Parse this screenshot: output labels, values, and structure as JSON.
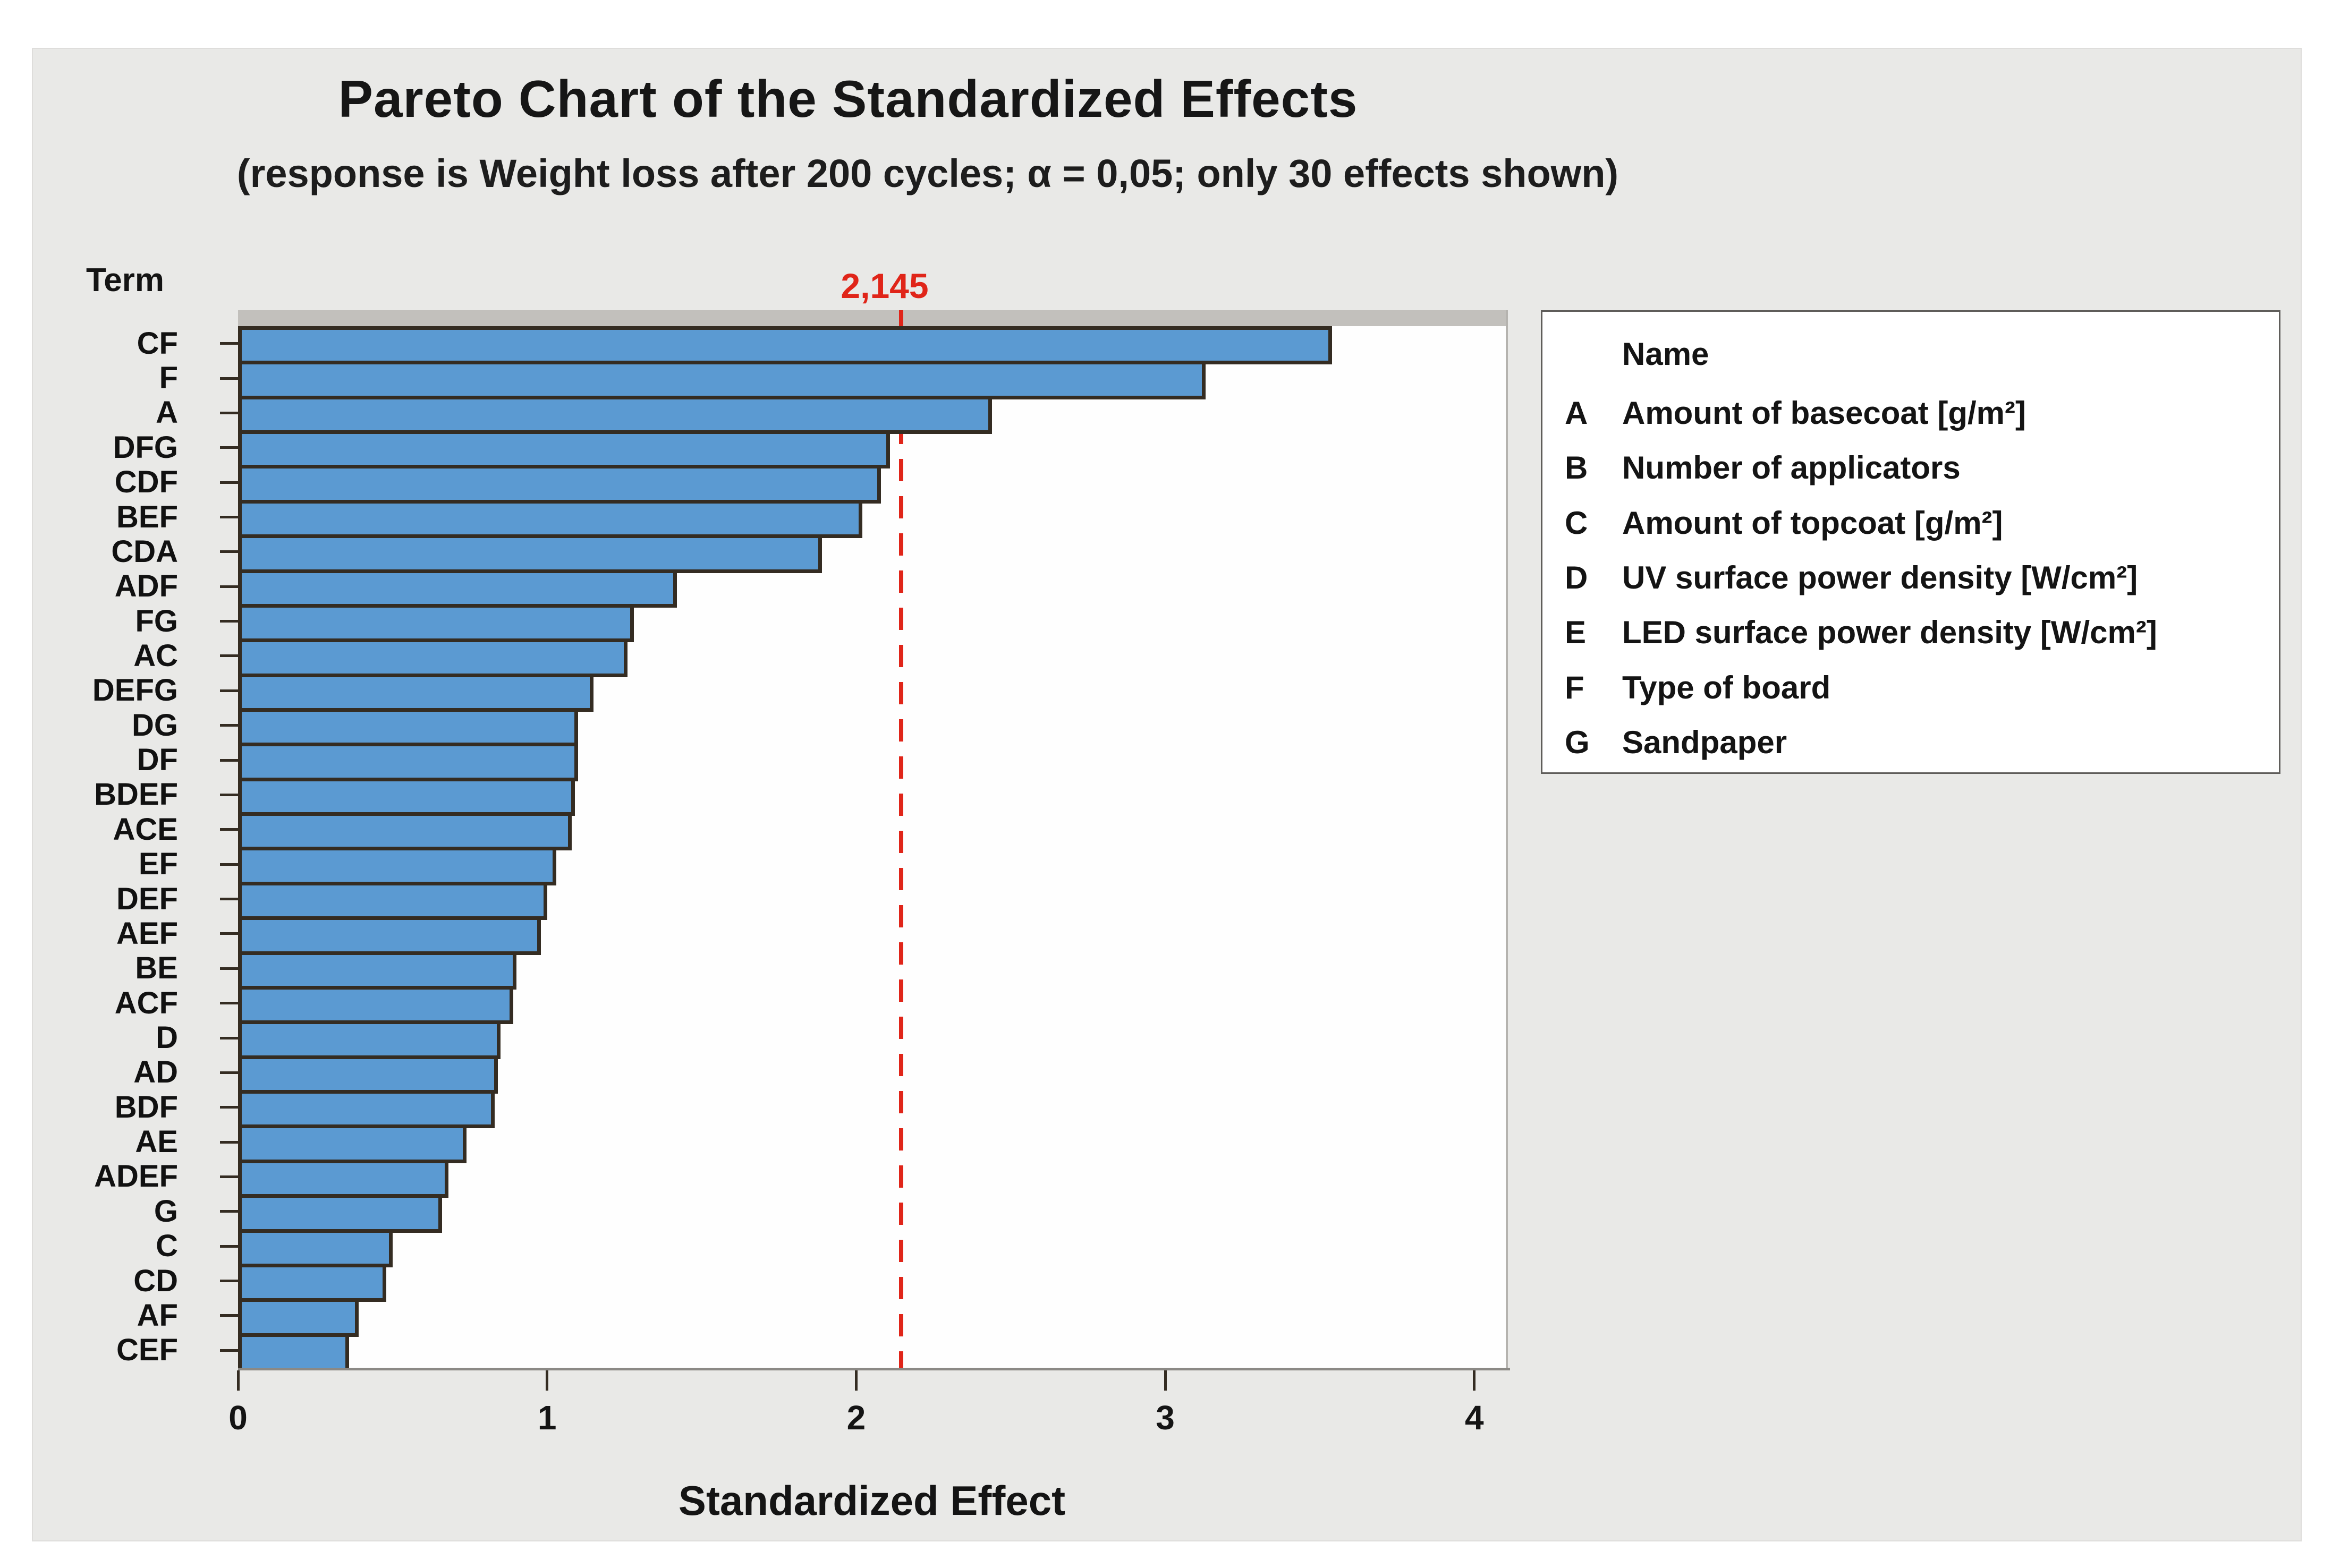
{
  "colors": {
    "panel_background": "#E9E9E7",
    "plot_background": "#FEFEFE",
    "bar_blue": "#5B9AD2",
    "bar_border": "#342C22",
    "accent_red": "#E02519",
    "text": "#141414"
  },
  "chart_data": {
    "type": "bar",
    "orientation": "horizontal-pareto",
    "title": "Pareto Chart of the Standardized Effects",
    "subtitle": "(response is Weight loss after 200 cycles; α = 0,05; only 30 effects shown)",
    "xlabel": "Standardized Effect",
    "ylabel": "Term",
    "xlim": [
      0,
      4
    ],
    "x_ticks": [
      "0",
      "1",
      "2",
      "3",
      "4"
    ],
    "grid": "off",
    "legend_position": "right",
    "reference_line": {
      "value": 2.145,
      "label": "2,145",
      "style": "dashed",
      "color": "#E02519"
    },
    "categories": [
      "CF",
      "F",
      "A",
      "DFG",
      "CDF",
      "BEF",
      "CDA",
      "ADF",
      "FG",
      "AC",
      "DEFG",
      "DG",
      "DF",
      "BDEF",
      "ACE",
      "EF",
      "DEF",
      "AEF",
      "BE",
      "ACF",
      "D",
      "AD",
      "BDF",
      "AE",
      "ADEF",
      "G",
      "C",
      "CD",
      "AF",
      "CEF"
    ],
    "values": [
      3.54,
      3.13,
      2.44,
      2.11,
      2.08,
      2.02,
      1.89,
      1.42,
      1.28,
      1.26,
      1.15,
      1.1,
      1.1,
      1.09,
      1.08,
      1.03,
      1.0,
      0.98,
      0.9,
      0.89,
      0.85,
      0.84,
      0.83,
      0.74,
      0.68,
      0.66,
      0.5,
      0.48,
      0.39,
      0.36
    ],
    "legend": {
      "header": "Name",
      "entries": [
        {
          "key": "A",
          "name": "Amount of basecoat [g/m²]"
        },
        {
          "key": "B",
          "name": "Number of applicators"
        },
        {
          "key": "C",
          "name": "Amount of topcoat [g/m²]"
        },
        {
          "key": "D",
          "name": "UV surface power density [W/cm²]"
        },
        {
          "key": "E",
          "name": "LED surface power density [W/cm²]"
        },
        {
          "key": "F",
          "name": "Type of board"
        },
        {
          "key": "G",
          "name": "Sandpaper"
        }
      ]
    }
  }
}
